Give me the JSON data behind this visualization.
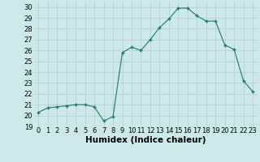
{
  "x": [
    0,
    1,
    2,
    3,
    4,
    5,
    6,
    7,
    8,
    9,
    10,
    11,
    12,
    13,
    14,
    15,
    16,
    17,
    18,
    19,
    20,
    21,
    22,
    23
  ],
  "y": [
    20.3,
    20.7,
    20.8,
    20.9,
    21.0,
    21.0,
    20.8,
    19.5,
    19.9,
    25.8,
    26.3,
    26.0,
    27.0,
    28.1,
    28.9,
    29.9,
    29.9,
    29.2,
    28.7,
    28.7,
    26.5,
    26.1,
    23.2,
    22.2
  ],
  "line_color": "#1a7a6e",
  "marker": "P",
  "marker_size": 2.5,
  "bg_color": "#cce8e8",
  "grid_color": "#b0cccc",
  "xlabel": "Humidex (Indice chaleur)",
  "xlim": [
    -0.5,
    23.5
  ],
  "ylim": [
    19,
    30.5
  ],
  "yticks": [
    19,
    20,
    21,
    22,
    23,
    24,
    25,
    26,
    27,
    28,
    29,
    30
  ],
  "xticks": [
    0,
    1,
    2,
    3,
    4,
    5,
    6,
    7,
    8,
    9,
    10,
    11,
    12,
    13,
    14,
    15,
    16,
    17,
    18,
    19,
    20,
    21,
    22,
    23
  ],
  "tick_fontsize": 6,
  "xlabel_fontsize": 7.5
}
